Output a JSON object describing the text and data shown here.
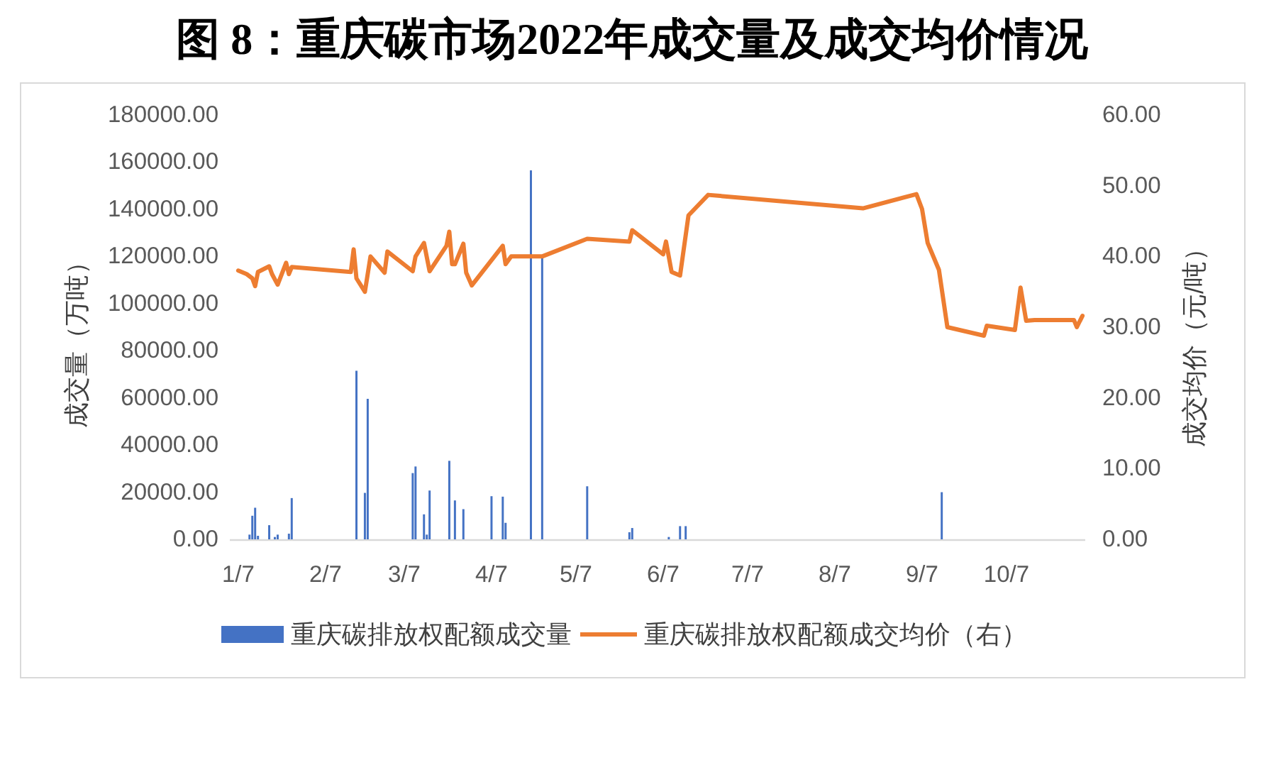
{
  "chart_data": {
    "type": "bar",
    "title": "图 8：重庆碳市场2022年成交量及成交均价情况",
    "ylabel": "成交量（万吨）",
    "y2label": "成交均价（元/吨）",
    "xlim": [
      "2022-01-04",
      "2022-11-04"
    ],
    "xticks": [
      {
        "value": "2022-01-07",
        "label": "1/7"
      },
      {
        "value": "2022-02-07",
        "label": "2/7"
      },
      {
        "value": "2022-03-07",
        "label": "3/7"
      },
      {
        "value": "2022-04-07",
        "label": "4/7"
      },
      {
        "value": "2022-05-07",
        "label": "5/7"
      },
      {
        "value": "2022-06-07",
        "label": "6/7"
      },
      {
        "value": "2022-07-07",
        "label": "7/7"
      },
      {
        "value": "2022-08-07",
        "label": "8/7"
      },
      {
        "value": "2022-09-07",
        "label": "9/7"
      },
      {
        "value": "2022-10-07",
        "label": "10/7"
      }
    ],
    "ylim": [
      0,
      180000
    ],
    "yticks": [
      {
        "value": 0,
        "label": "0.00"
      },
      {
        "value": 20000,
        "label": "20000.00"
      },
      {
        "value": 40000,
        "label": "40000.00"
      },
      {
        "value": 60000,
        "label": "60000.00"
      },
      {
        "value": 80000,
        "label": "80000.00"
      },
      {
        "value": 100000,
        "label": "100000.00"
      },
      {
        "value": 120000,
        "label": "120000.00"
      },
      {
        "value": 140000,
        "label": "140000.00"
      },
      {
        "value": 160000,
        "label": "160000.00"
      },
      {
        "value": 180000,
        "label": "180000.00"
      }
    ],
    "y2lim": [
      0,
      60
    ],
    "y2ticks": [
      {
        "value": 0,
        "label": "0.00"
      },
      {
        "value": 10,
        "label": "10.00"
      },
      {
        "value": 20,
        "label": "20.00"
      },
      {
        "value": 30,
        "label": "30.00"
      },
      {
        "value": 40,
        "label": "40.00"
      },
      {
        "value": 50,
        "label": "50.00"
      },
      {
        "value": 60,
        "label": "60.00"
      }
    ],
    "legend": "bottom",
    "series": [
      {
        "name": "重庆碳排放权配额成交量",
        "color": "#4472c4",
        "x": [
          "2022-01-11",
          "2022-01-12",
          "2022-01-13",
          "2022-01-14",
          "2022-01-18",
          "2022-01-20",
          "2022-01-21",
          "2022-01-25",
          "2022-01-26",
          "2022-02-18",
          "2022-02-21",
          "2022-02-22",
          "2022-03-10",
          "2022-03-11",
          "2022-03-14",
          "2022-03-15",
          "2022-03-16",
          "2022-03-23",
          "2022-03-25",
          "2022-03-28",
          "2022-04-07",
          "2022-04-11",
          "2022-04-12",
          "2022-04-21",
          "2022-04-25",
          "2022-05-11",
          "2022-05-26",
          "2022-05-27",
          "2022-06-09",
          "2022-06-13",
          "2022-06-15",
          "2022-09-14"
        ],
        "values": [
          2000,
          10000,
          13400,
          1500,
          6000,
          1000,
          2000,
          2400,
          17500,
          71500,
          19700,
          59600,
          28100,
          30900,
          10600,
          2000,
          20700,
          33300,
          16500,
          12800,
          18300,
          18100,
          7000,
          156500,
          119200,
          22500,
          3000,
          4800,
          1000,
          5600,
          5600,
          20000
        ]
      },
      {
        "name": "重庆碳排放权配额成交均价（右）",
        "type": "line",
        "axis": "y2",
        "color": "#ed7d31",
        "x": [
          "2022-01-07",
          "2022-01-10",
          "2022-01-12",
          "2022-01-13",
          "2022-01-14",
          "2022-01-18",
          "2022-01-19",
          "2022-01-21",
          "2022-01-24",
          "2022-01-25",
          "2022-01-26",
          "2022-02-16",
          "2022-02-17",
          "2022-02-18",
          "2022-02-21",
          "2022-02-23",
          "2022-02-28",
          "2022-03-01",
          "2022-03-10",
          "2022-03-11",
          "2022-03-14",
          "2022-03-16",
          "2022-03-22",
          "2022-03-23",
          "2022-03-24",
          "2022-03-25",
          "2022-03-28",
          "2022-03-29",
          "2022-03-31",
          "2022-04-11",
          "2022-04-12",
          "2022-04-14",
          "2022-04-25",
          "2022-05-11",
          "2022-05-26",
          "2022-05-27",
          "2022-06-07",
          "2022-06-08",
          "2022-06-10",
          "2022-06-13",
          "2022-06-16",
          "2022-06-23",
          "2022-08-17",
          "2022-09-05",
          "2022-09-07",
          "2022-09-09",
          "2022-09-13",
          "2022-09-16",
          "2022-09-29",
          "2022-09-30",
          "2022-10-10",
          "2022-10-12",
          "2022-10-14",
          "2022-10-17",
          "2022-10-31",
          "2022-11-01",
          "2022-11-03"
        ],
        "values": [
          38.0,
          37.5,
          36.9,
          35.8,
          37.8,
          38.6,
          37.5,
          36.0,
          39.1,
          37.5,
          38.5,
          37.8,
          41.0,
          36.9,
          35.0,
          40.0,
          37.7,
          40.7,
          37.9,
          40.0,
          41.9,
          37.9,
          41.5,
          43.5,
          38.9,
          38.9,
          41.8,
          37.7,
          35.9,
          41.5,
          38.9,
          40.0,
          40.0,
          42.5,
          42.1,
          43.7,
          40.3,
          42.1,
          37.8,
          37.3,
          45.8,
          48.7,
          46.8,
          48.8,
          46.7,
          41.9,
          38.1,
          30.0,
          28.8,
          30.2,
          29.6,
          35.6,
          30.9,
          31.0,
          31.0,
          30.0,
          31.6
        ]
      }
    ]
  }
}
